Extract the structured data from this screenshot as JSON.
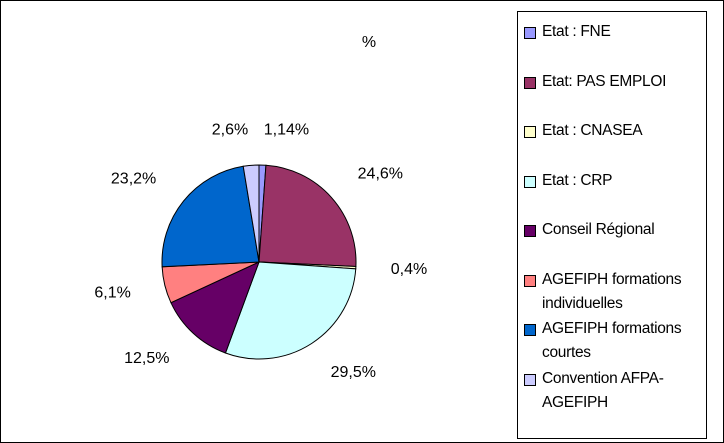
{
  "chart_data": {
    "type": "pie",
    "title": "%",
    "categories": [
      "Etat : FNE",
      "Etat: PAS EMPLOI",
      "Etat : CNASEA",
      "Etat : CRP",
      "Conseil Régional",
      "AGEFIPH formations individuelles",
      "AGEFIPH formations courtes",
      "Convention AFPA-AGEFIPH"
    ],
    "values": [
      1.14,
      24.6,
      0.4,
      29.5,
      12.5,
      6.1,
      23.2,
      2.6
    ],
    "value_labels": [
      "1,14%",
      "24,6%",
      "0,4%",
      "29,5%",
      "12,5%",
      "6,1%",
      "23,2%",
      "2,6%"
    ],
    "colors": [
      "#9999ff",
      "#993366",
      "#ffffcc",
      "#ccffff",
      "#660066",
      "#ff8080",
      "#0066cc",
      "#ccccff"
    ],
    "legend": "right"
  }
}
